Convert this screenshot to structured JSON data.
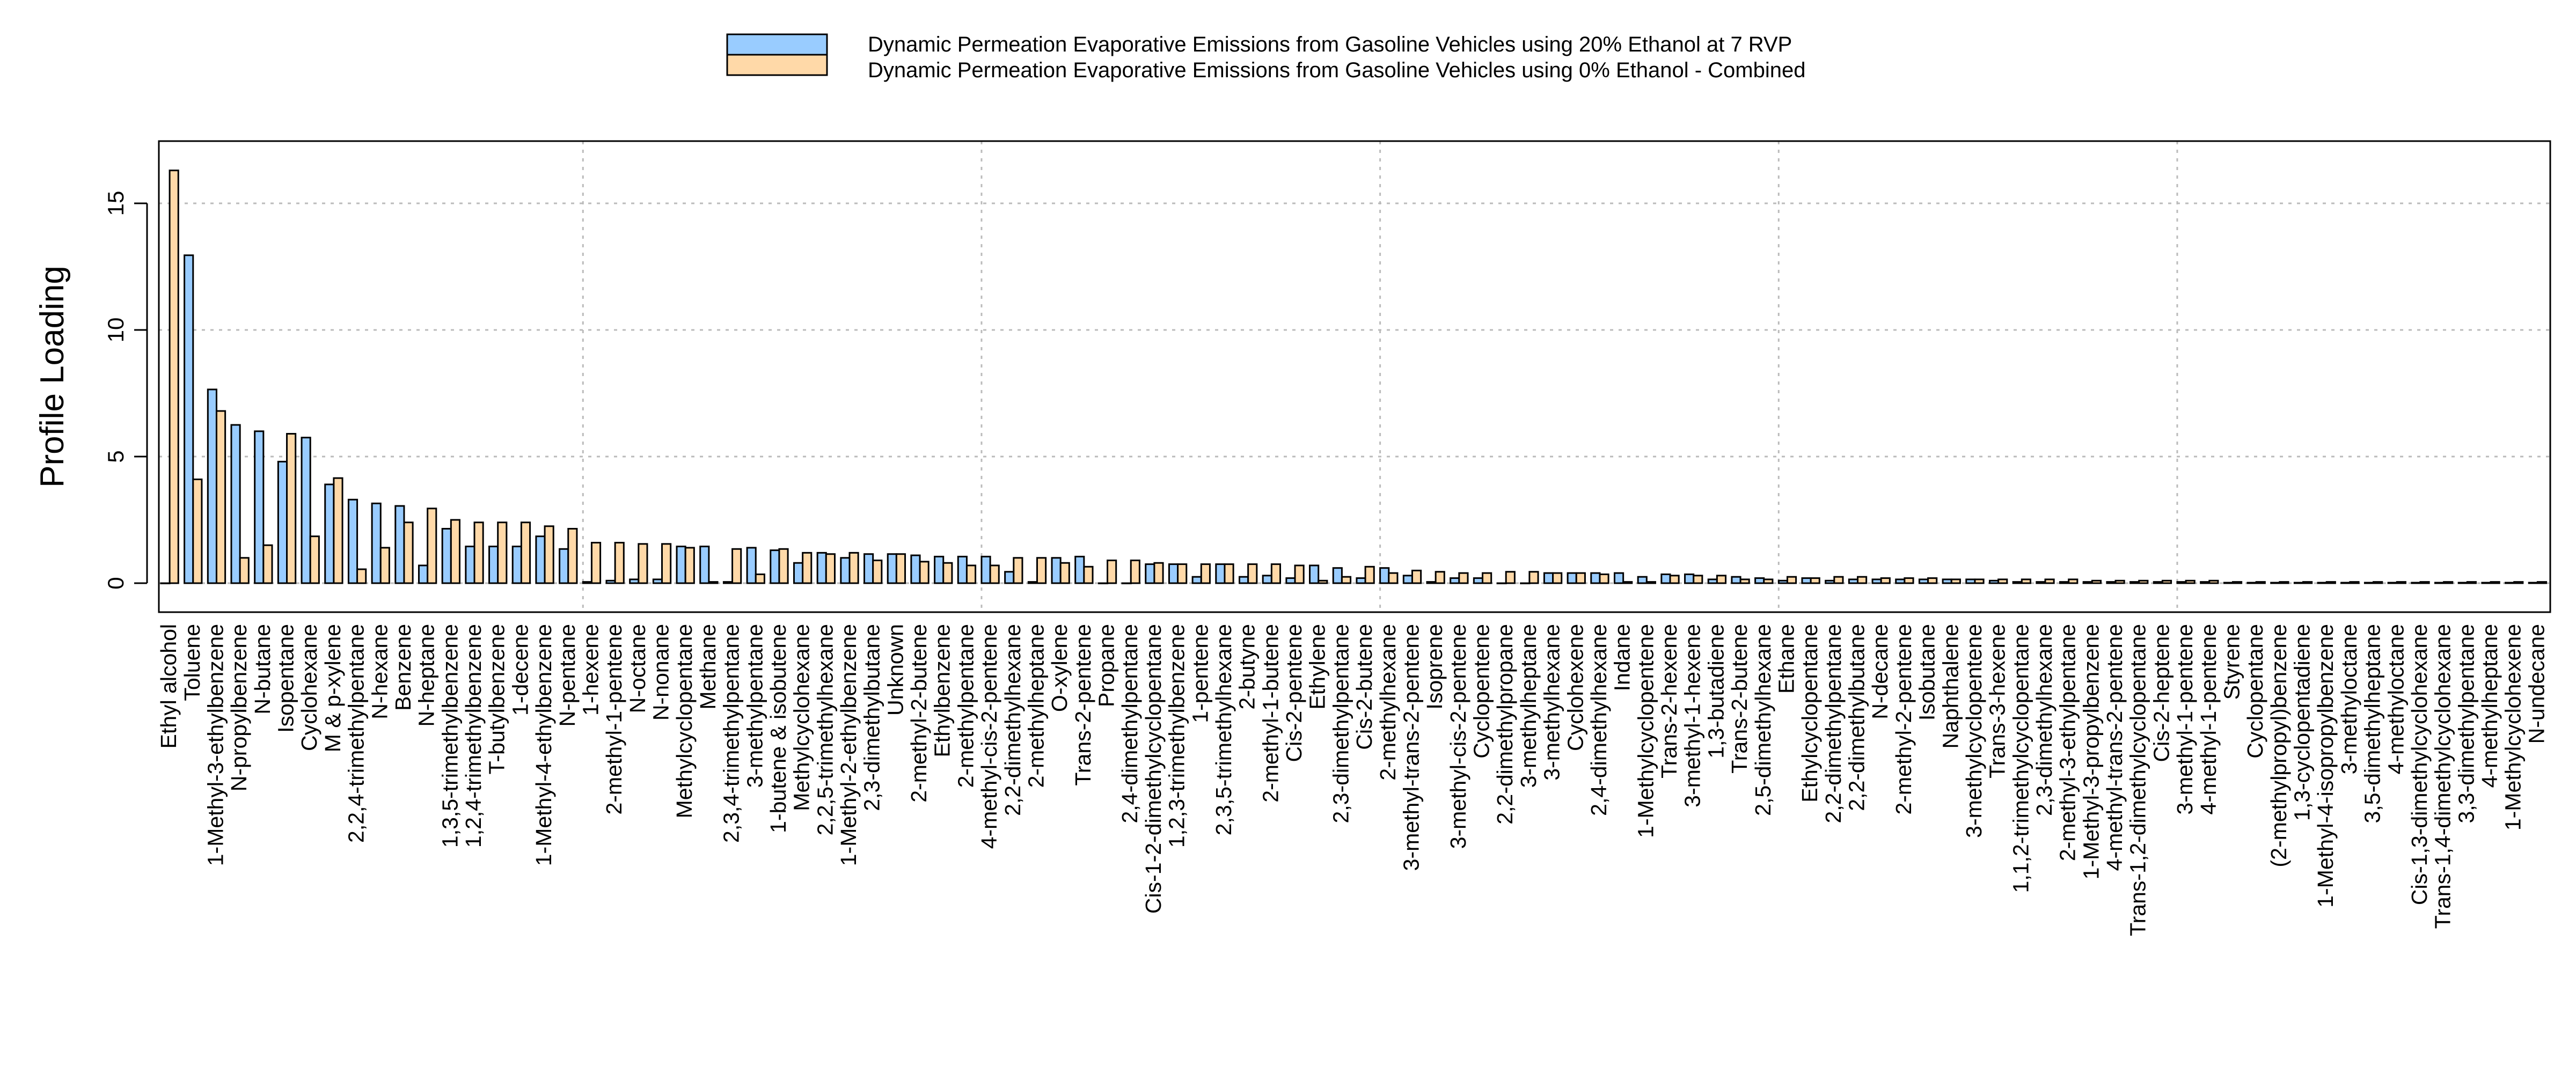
{
  "chart_data": {
    "type": "bar",
    "ylabel": "Profile Loading",
    "xlabel": "",
    "ylim": [
      -1.1,
      17.3
    ],
    "yticks": [
      0,
      5,
      10,
      15
    ],
    "grid": true,
    "legend_placement": "top-center",
    "colors": {
      "series_20": "#99ccff",
      "series_0": "#ffd9a8",
      "grid": "#bbbbbb"
    },
    "categories": [
      "Ethyl alcohol",
      "Toluene",
      "1-Methyl-3-ethylbenzene",
      "N-propylbenzene",
      "N-butane",
      "Isopentane",
      "Cyclohexane",
      "M & p-xylene",
      "2,2,4-trimethylpentane",
      "N-hexane",
      "Benzene",
      "N-heptane",
      "1,3,5-trimethylbenzene",
      "1,2,4-trimethylbenzene",
      "T-butylbenzene",
      "1-decene",
      "1-Methyl-4-ethylbenzene",
      "N-pentane",
      "1-hexene",
      "2-methyl-1-pentene",
      "N-octane",
      "N-nonane",
      "Methylcyclopentane",
      "Methane",
      "2,3,4-trimethylpentane",
      "3-methylpentane",
      "1-butene & isobutene",
      "Methylcyclohexane",
      "2,2,5-trimethylhexane",
      "1-Methyl-2-ethylbenzene",
      "2,3-dimethylbutane",
      "Unknown",
      "2-methyl-2-butene",
      "Ethylbenzene",
      "2-methylpentane",
      "4-methyl-cis-2-pentene",
      "2,2-dimethylhexane",
      "2-methylheptane",
      "O-xylene",
      "Trans-2-pentene",
      "Propane",
      "2,4-dimethylpentane",
      "Cis-1-2-dimethylcyclopentane",
      "1,2,3-trimethylbenzene",
      "1-pentene",
      "2,3,5-trimethylhexane",
      "2-butyne",
      "2-methyl-1-butene",
      "Cis-2-pentene",
      "Ethylene",
      "2,3-dimethylpentane",
      "Cis-2-butene",
      "2-methylhexane",
      "3-methyl-trans-2-pentene",
      "Isoprene",
      "3-methyl-cis-2-pentene",
      "Cyclopentene",
      "2,2-dimethylpropane",
      "3-methylheptane",
      "3-methylhexane",
      "Cyclohexene",
      "2,4-dimethylhexane",
      "Indane",
      "1-Methylcyclopentene",
      "Trans-2-hexene",
      "3-methyl-1-hexene",
      "1,3-butadiene",
      "Trans-2-butene",
      "2,5-dimethylhexane",
      "Ethane",
      "Ethylcyclopentane",
      "2,2-dimethylpentane",
      "2,2-dimethylbutane",
      "N-decane",
      "2-methyl-2-pentene",
      "Isobutane",
      "Naphthalene",
      "3-methylcyclopentene",
      "Trans-3-hexene",
      "1,1,2-trimethylcyclopentane",
      "2,3-dimethylhexane",
      "2-methyl-3-ethylpentane",
      "1-Methyl-3-propylbenzene",
      "4-methyl-trans-2-pentene",
      "Trans-1,2-dimethylcyclopentane",
      "Cis-2-heptene",
      "3-methyl-1-pentene",
      "4-methyl-1-pentene",
      "Styrene",
      "Cyclopentane",
      "(2-methylpropyl)benzene",
      "1,3-cyclopentadiene",
      "1-Methyl-4-isopropylbenzene",
      "3-methyloctane",
      "3,5-dimethylheptane",
      "4-methyloctane",
      "Cis-1,3-dimethylcyclohexane",
      "Trans-1,4-dimethylcyclohexane",
      "3,3-dimethylpentane",
      "4-methylheptane",
      "1-Methylcyclohexene",
      "N-undecane"
    ],
    "series": [
      {
        "name": "Dynamic Permeation Evaporative Emissions from Gasoline Vehicles using 20% Ethanol at 7 RVP",
        "values": [
          0,
          12.95,
          7.65,
          6.25,
          6.0,
          4.8,
          5.75,
          3.9,
          3.3,
          3.15,
          3.05,
          0.7,
          2.15,
          1.45,
          1.45,
          1.45,
          1.85,
          1.35,
          0.05,
          0.1,
          0.15,
          0.15,
          1.45,
          1.45,
          0.05,
          1.4,
          1.3,
          0.8,
          1.2,
          1.0,
          1.15,
          1.15,
          1.1,
          1.05,
          1.05,
          1.05,
          0.45,
          0.05,
          1.0,
          1.05,
          0,
          0,
          0.75,
          0.75,
          0.25,
          0.75,
          0.25,
          0.3,
          0.2,
          0.7,
          0.6,
          0.2,
          0.6,
          0.3,
          0.05,
          0.2,
          0.2,
          0,
          0,
          0.4,
          0.4,
          0.4,
          0.4,
          0.25,
          0.35,
          0.35,
          0.15,
          0.25,
          0.2,
          0.1,
          0.2,
          0.1,
          0.15,
          0.15,
          0.15,
          0.15,
          0.15,
          0.15,
          0.1,
          0.05,
          0.05,
          0.05,
          0.05,
          0.05,
          0.05,
          0.05,
          0.05,
          0.05,
          0.02,
          0.02,
          0.02,
          0.02,
          0.02,
          0.02,
          0.02,
          0.02,
          0.02,
          0.02,
          0.02,
          0.02,
          0.02,
          0.02
        ]
      },
      {
        "name": "Dynamic Permeation Evaporative Emissions from Gasoline Vehicles using 0% Ethanol - Combined",
        "values": [
          16.3,
          4.1,
          6.8,
          1.0,
          1.5,
          5.9,
          1.85,
          4.15,
          0.55,
          1.4,
          2.4,
          2.95,
          2.5,
          2.4,
          2.4,
          2.4,
          2.25,
          2.15,
          1.6,
          1.6,
          1.55,
          1.55,
          1.4,
          0.05,
          1.35,
          0.35,
          1.35,
          1.2,
          1.15,
          1.2,
          0.9,
          1.15,
          0.85,
          0.8,
          0.7,
          0.7,
          1.0,
          1.0,
          0.8,
          0.65,
          0.9,
          0.9,
          0.8,
          0.75,
          0.75,
          0.75,
          0.75,
          0.75,
          0.7,
          0.1,
          0.25,
          0.65,
          0.4,
          0.5,
          0.45,
          0.4,
          0.4,
          0.45,
          0.45,
          0.4,
          0.4,
          0.35,
          0.05,
          0.05,
          0.3,
          0.3,
          0.3,
          0.15,
          0.15,
          0.25,
          0.2,
          0.25,
          0.25,
          0.2,
          0.2,
          0.2,
          0.15,
          0.15,
          0.15,
          0.15,
          0.15,
          0.15,
          0.1,
          0.1,
          0.1,
          0.1,
          0.1,
          0.1,
          0.05,
          0.05,
          0.05,
          0.05,
          0.05,
          0.05,
          0.05,
          0.05,
          0.05,
          0.05,
          0.05,
          0.05,
          0.05,
          0.05
        ]
      }
    ]
  }
}
